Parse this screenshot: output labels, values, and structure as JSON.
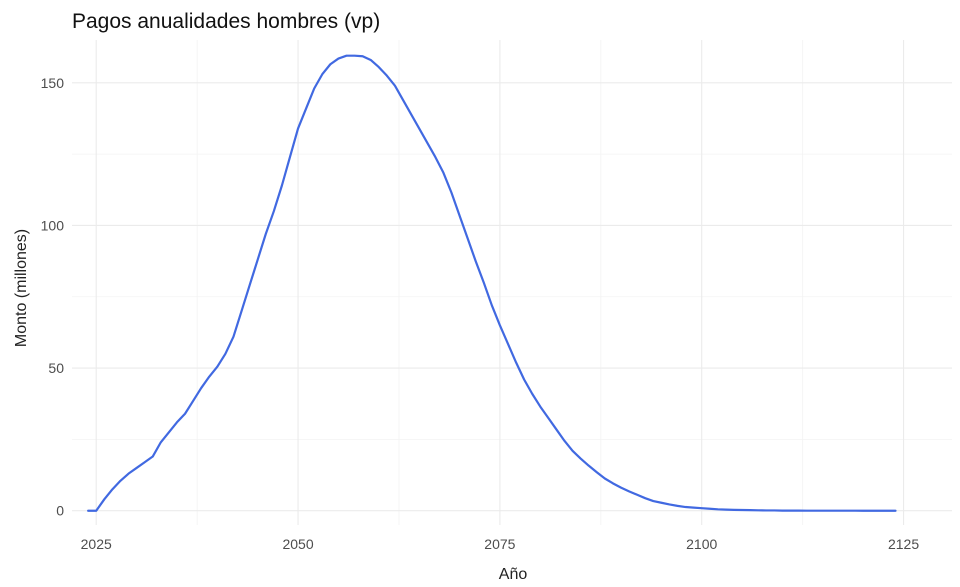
{
  "chart_data": {
    "type": "line",
    "title": "Pagos anualidades hombres (vp)",
    "xlabel": "Año",
    "ylabel": "Monto (millones)",
    "xlim": [
      2022,
      2131
    ],
    "ylim": [
      -5,
      165
    ],
    "x_ticks": [
      2025,
      2050,
      2075,
      2100,
      2125
    ],
    "y_ticks": [
      0,
      50,
      100,
      150
    ],
    "grid": true,
    "legend": "none",
    "colors": {
      "line": "#4169e1",
      "grid": "#ebebeb"
    },
    "series": [
      {
        "x": [
          2024,
          2025,
          2026,
          2027,
          2028,
          2029,
          2030,
          2031,
          2032,
          2033,
          2034,
          2035,
          2036,
          2037,
          2038,
          2039,
          2040,
          2041,
          2042,
          2043,
          2044,
          2045,
          2046,
          2047,
          2048,
          2049,
          2050,
          2051,
          2052,
          2053,
          2054,
          2055,
          2056,
          2057,
          2058,
          2059,
          2060,
          2061,
          2062,
          2063,
          2064,
          2065,
          2066,
          2067,
          2068,
          2069,
          2070,
          2071,
          2072,
          2073,
          2074,
          2075,
          2076,
          2077,
          2078,
          2079,
          2080,
          2081,
          2082,
          2083,
          2084,
          2085,
          2086,
          2087,
          2088,
          2089,
          2090,
          2091,
          2092,
          2093,
          2094,
          2095,
          2096,
          2097,
          2098,
          2099,
          2100,
          2101,
          2102,
          2103,
          2104,
          2105,
          2106,
          2107,
          2108,
          2109,
          2110,
          2111,
          2112,
          2113,
          2114,
          2115,
          2116,
          2117,
          2118,
          2119,
          2120,
          2121,
          2122,
          2123,
          2124
        ],
        "y": [
          0,
          0,
          4,
          7.5,
          10.5,
          13,
          15,
          17,
          19,
          24,
          27.5,
          31,
          34,
          38.5,
          43,
          47,
          50.5,
          55,
          61,
          70,
          79,
          88,
          97,
          105,
          114,
          124,
          134,
          141,
          148,
          153,
          156.5,
          158.5,
          159.5,
          159.5,
          159.3,
          158,
          155.5,
          152.5,
          149,
          144,
          139,
          134,
          129,
          124,
          118.5,
          111.5,
          103.5,
          95.5,
          87.5,
          80,
          72,
          65,
          58.5,
          52,
          46,
          41,
          36.5,
          32.5,
          28.5,
          24.5,
          21,
          18.3,
          15.8,
          13.5,
          11.3,
          9.6,
          8.1,
          6.8,
          5.6,
          4.4,
          3.4,
          2.8,
          2.2,
          1.7,
          1.3,
          1.1,
          0.9,
          0.7,
          0.5,
          0.4,
          0.3,
          0.25,
          0.2,
          0.15,
          0.1,
          0.1,
          0.05,
          0.05,
          0.05,
          0.02,
          0.02,
          0.02,
          0.01,
          0.01,
          0.01,
          0.01,
          0,
          0,
          0,
          0,
          0
        ]
      }
    ]
  }
}
